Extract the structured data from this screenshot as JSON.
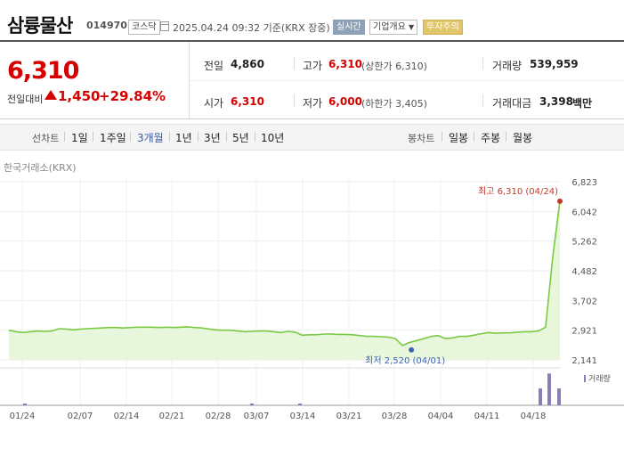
{
  "header": {
    "name": "삼륭물산",
    "code": "014970",
    "market_tag": "코스닥",
    "datetime": "2025.04.24 09:32 기준(KRX 장중)",
    "live_label": "실시간",
    "company_info_label": "기업개요",
    "warning_label": "투자주의"
  },
  "quote": {
    "price": "6,310",
    "change_label": "전일대비",
    "change_value": "1,450",
    "change_pct": "+29.84%"
  },
  "stats": {
    "prev_close_label": "전일",
    "prev_close": "4,860",
    "high_label": "고가",
    "high": "6,310",
    "upper_limit": "(상한가 6,310)",
    "volume_label": "거래량",
    "volume": "539,959",
    "open_label": "시가",
    "open": "6,310",
    "low_label": "저가",
    "low": "6,000",
    "lower_limit": "(하한가 3,405)",
    "amount_label": "거래대금",
    "amount": "3,398",
    "amount_unit": "백만"
  },
  "periods": {
    "line_chart_label": "선차트",
    "line_options": [
      "1일",
      "1주일",
      "3개월",
      "1년",
      "3년",
      "5년",
      "10년"
    ],
    "selected": "3개월",
    "candle_chart_label": "봉차트",
    "candle_options": [
      "일봉",
      "주봉",
      "월봉"
    ]
  },
  "colors": {
    "up": "#d60000",
    "selected_period": "#3a5a9e",
    "line": "#7ac943",
    "area_fill": "#e8f7dc",
    "volume_bar": "#8a7db6"
  },
  "chart_data": {
    "type": "area",
    "exchange_label": "한국거래소(KRX)",
    "x_ticks": [
      "01/24",
      "02/07",
      "02/14",
      "02/21",
      "02/28",
      "03/07",
      "03/14",
      "03/21",
      "03/28",
      "04/04",
      "04/11",
      "04/18"
    ],
    "y_ticks": [
      "6,823",
      "6,042",
      "5,262",
      "4,482",
      "3,702",
      "2,921",
      "2,141"
    ],
    "ylim": [
      2141,
      6823
    ],
    "start_date": "01/24",
    "end_date": "04/24",
    "series": [
      {
        "values": [
          2920,
          2880,
          2860,
          2880,
          2900,
          2890,
          2900,
          2960,
          2950,
          2930,
          2950,
          2960,
          2970,
          2980,
          2990,
          2990,
          2980,
          2990,
          3000,
          3000,
          3000,
          2990,
          3000,
          2990,
          3000,
          3010,
          2990,
          2980,
          2950,
          2930,
          2920,
          2920,
          2900,
          2880,
          2890,
          2900,
          2900,
          2880,
          2860,
          2890,
          2870,
          2790,
          2800,
          2800,
          2820,
          2820,
          2810,
          2810,
          2800,
          2780,
          2760,
          2760,
          2750,
          2740,
          2700,
          2520,
          2600,
          2650,
          2700,
          2760,
          2780,
          2700,
          2720,
          2760,
          2760,
          2790,
          2830,
          2860,
          2840,
          2850,
          2850,
          2870,
          2880,
          2880,
          2900,
          3000,
          4860,
          6310
        ]
      }
    ],
    "max_annotation": "최고 6,310 (04/24)",
    "min_annotation": "최저 2,520 (04/01)",
    "volume_label": "거래량",
    "volume_bars": [
      0.45,
      0.85,
      0.45
    ]
  }
}
